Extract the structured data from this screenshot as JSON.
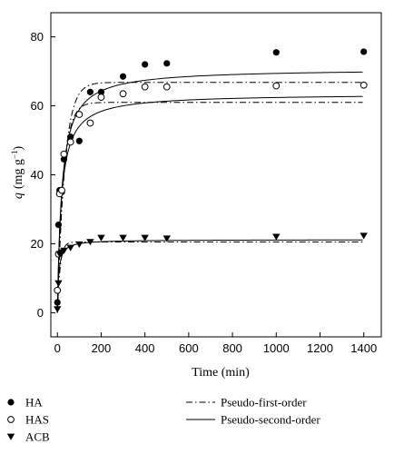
{
  "chart_data": {
    "type": "scatter",
    "xlabel": "Time (min)",
    "ylabel_var": "q",
    "ylabel_unit": "(mg g",
    "ylabel_sup": "−1",
    "ylabel_close": ")",
    "xlim": [
      -30,
      1480
    ],
    "ylim": [
      -7,
      87
    ],
    "xticks": [
      0,
      200,
      400,
      600,
      800,
      1000,
      1200,
      1400
    ],
    "yticks": [
      0,
      20,
      40,
      60,
      80
    ],
    "grid": false,
    "legend_position": "bottom",
    "series": [
      {
        "name": "HA",
        "marker": "filled-circle",
        "points": [
          [
            0,
            3
          ],
          [
            5,
            25.5
          ],
          [
            10,
            35.5
          ],
          [
            20,
            35
          ],
          [
            30,
            44.5
          ],
          [
            60,
            51
          ],
          [
            100,
            49.8
          ],
          [
            150,
            64
          ],
          [
            200,
            64
          ],
          [
            300,
            68.5
          ],
          [
            400,
            72
          ],
          [
            500,
            72.3
          ],
          [
            1000,
            75.5
          ],
          [
            1400,
            75.7
          ]
        ]
      },
      {
        "name": "HAS",
        "marker": "open-circle",
        "points": [
          [
            0,
            6.5
          ],
          [
            5,
            17
          ],
          [
            10,
            34.5
          ],
          [
            20,
            35.5
          ],
          [
            30,
            46
          ],
          [
            60,
            49.5
          ],
          [
            100,
            57.5
          ],
          [
            150,
            55
          ],
          [
            200,
            62.5
          ],
          [
            300,
            63.5
          ],
          [
            400,
            65.5
          ],
          [
            500,
            65.5
          ],
          [
            1000,
            65.8
          ],
          [
            1400,
            66
          ]
        ]
      },
      {
        "name": "ACB",
        "marker": "filled-triangle-down",
        "points": [
          [
            0,
            1
          ],
          [
            5,
            8.5
          ],
          [
            10,
            17
          ],
          [
            20,
            17.5
          ],
          [
            30,
            18
          ],
          [
            60,
            18.8
          ],
          [
            100,
            19.8
          ],
          [
            150,
            20.5
          ],
          [
            200,
            21.7
          ],
          [
            300,
            21.7
          ],
          [
            400,
            21.7
          ],
          [
            500,
            21.5
          ],
          [
            1000,
            22
          ],
          [
            1400,
            22.3
          ]
        ]
      }
    ],
    "fits": [
      {
        "name": "Pseudo-first-order",
        "style": "dash-dot",
        "model": "first",
        "curves": [
          {
            "qe": 66.8,
            "k": 0.03
          },
          {
            "qe": 61,
            "k": 0.035
          },
          {
            "qe": 20.5,
            "k": 0.08
          }
        ]
      },
      {
        "name": "Pseudo-second-order",
        "style": "solid",
        "model": "second",
        "curves": [
          {
            "qe": 70.8,
            "k": 0.0007
          },
          {
            "qe": 63.5,
            "k": 0.0009
          },
          {
            "qe": 21.2,
            "k": 0.008
          }
        ]
      }
    ]
  },
  "legend": {
    "markers": [
      "HA",
      "HAS",
      "ACB"
    ],
    "lines": [
      "Pseudo-first-order",
      "Pseudo-second-order"
    ]
  }
}
